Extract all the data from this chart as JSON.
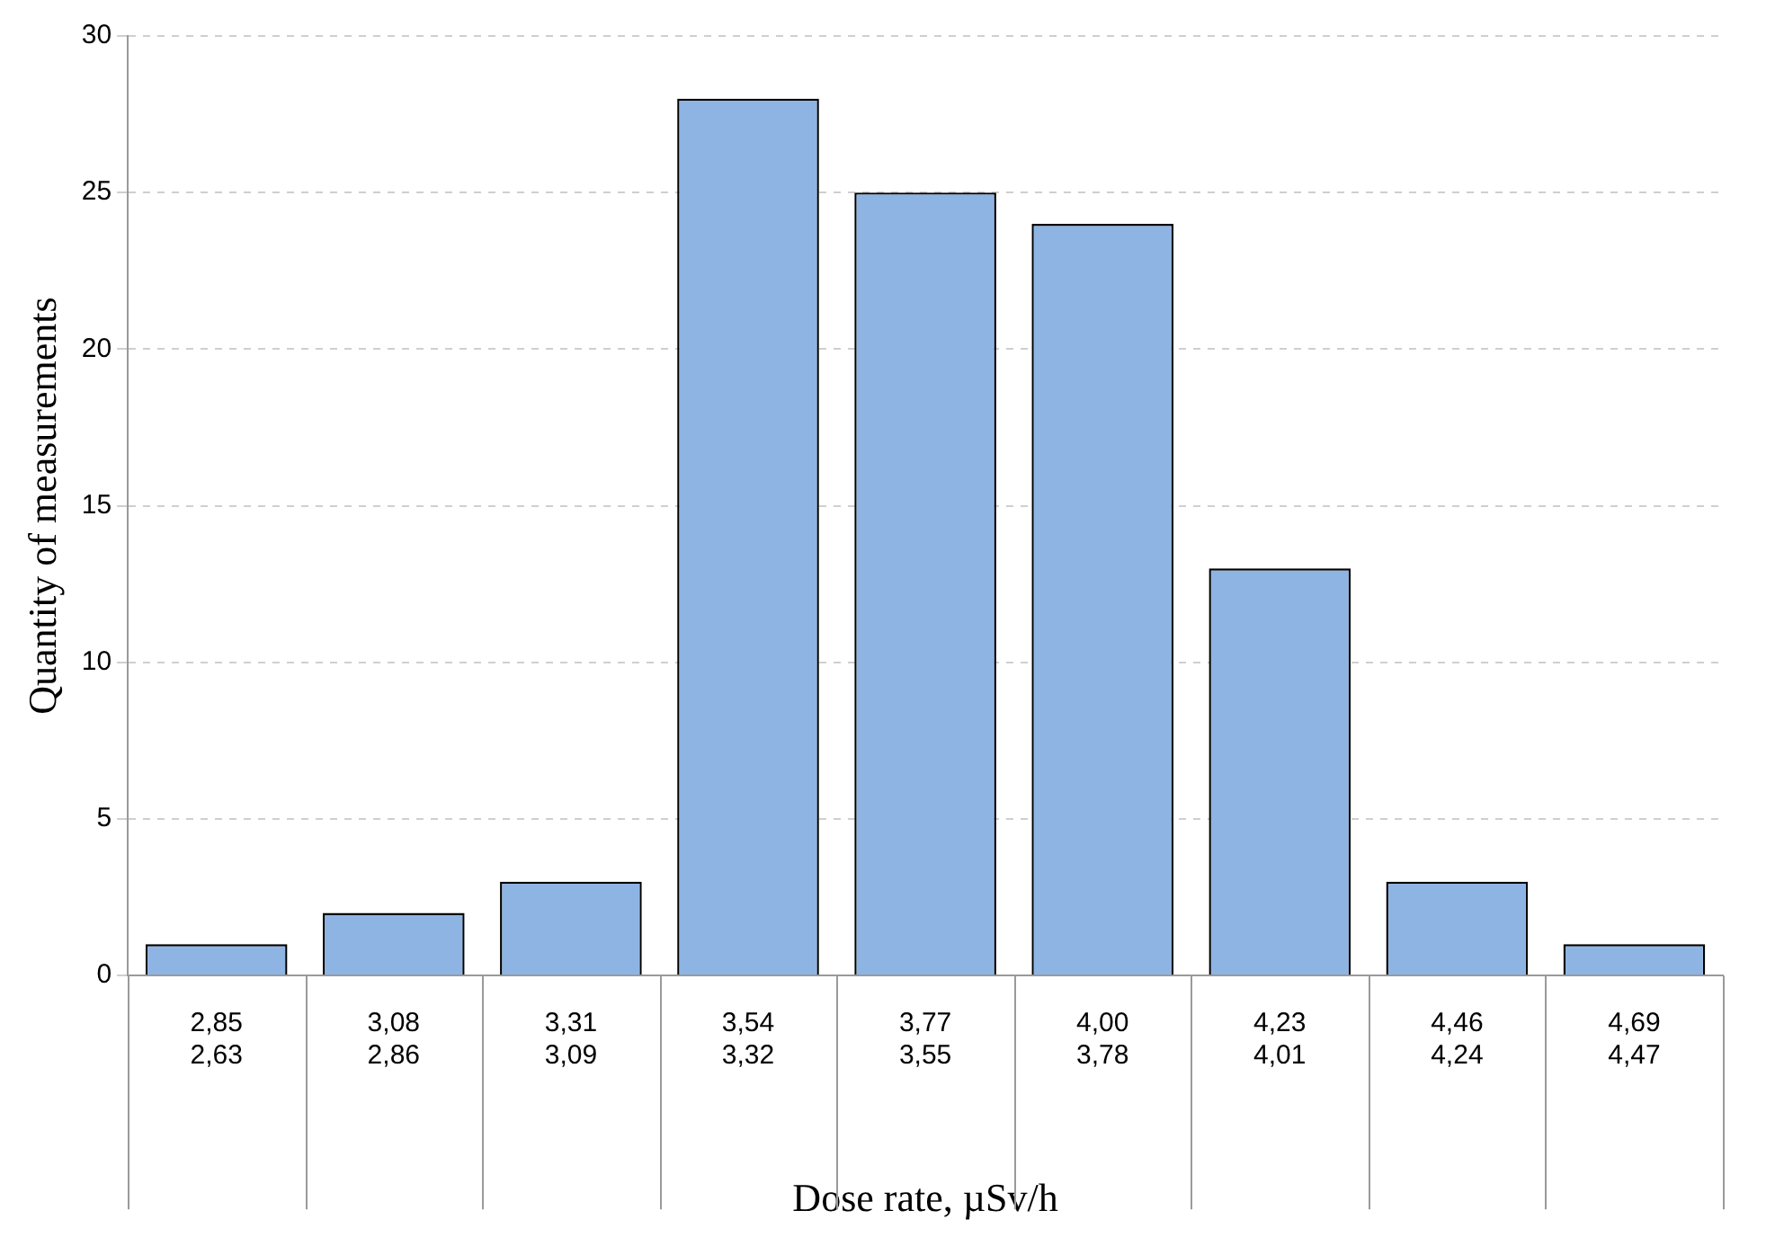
{
  "chart_data": {
    "type": "bar",
    "xlabel": "Dose rate, µSv/h",
    "ylabel": "Quantity of measurements",
    "categories": [
      "2,85\n2,63",
      "3,08\n2,86",
      "3,31\n3,09",
      "3,54\n3,32",
      "3,77\n3,55",
      "4,00\n3,78",
      "4,23\n4,01",
      "4,46\n4,24",
      "4,69\n4,47"
    ],
    "values": [
      1,
      2,
      3,
      28,
      25,
      24,
      13,
      3,
      1
    ],
    "color": "#8eb4e3",
    "ylim": [
      0,
      30
    ],
    "yticks": [
      0,
      5,
      10,
      15,
      20,
      25,
      30
    ],
    "grid": "y",
    "legend": false
  }
}
